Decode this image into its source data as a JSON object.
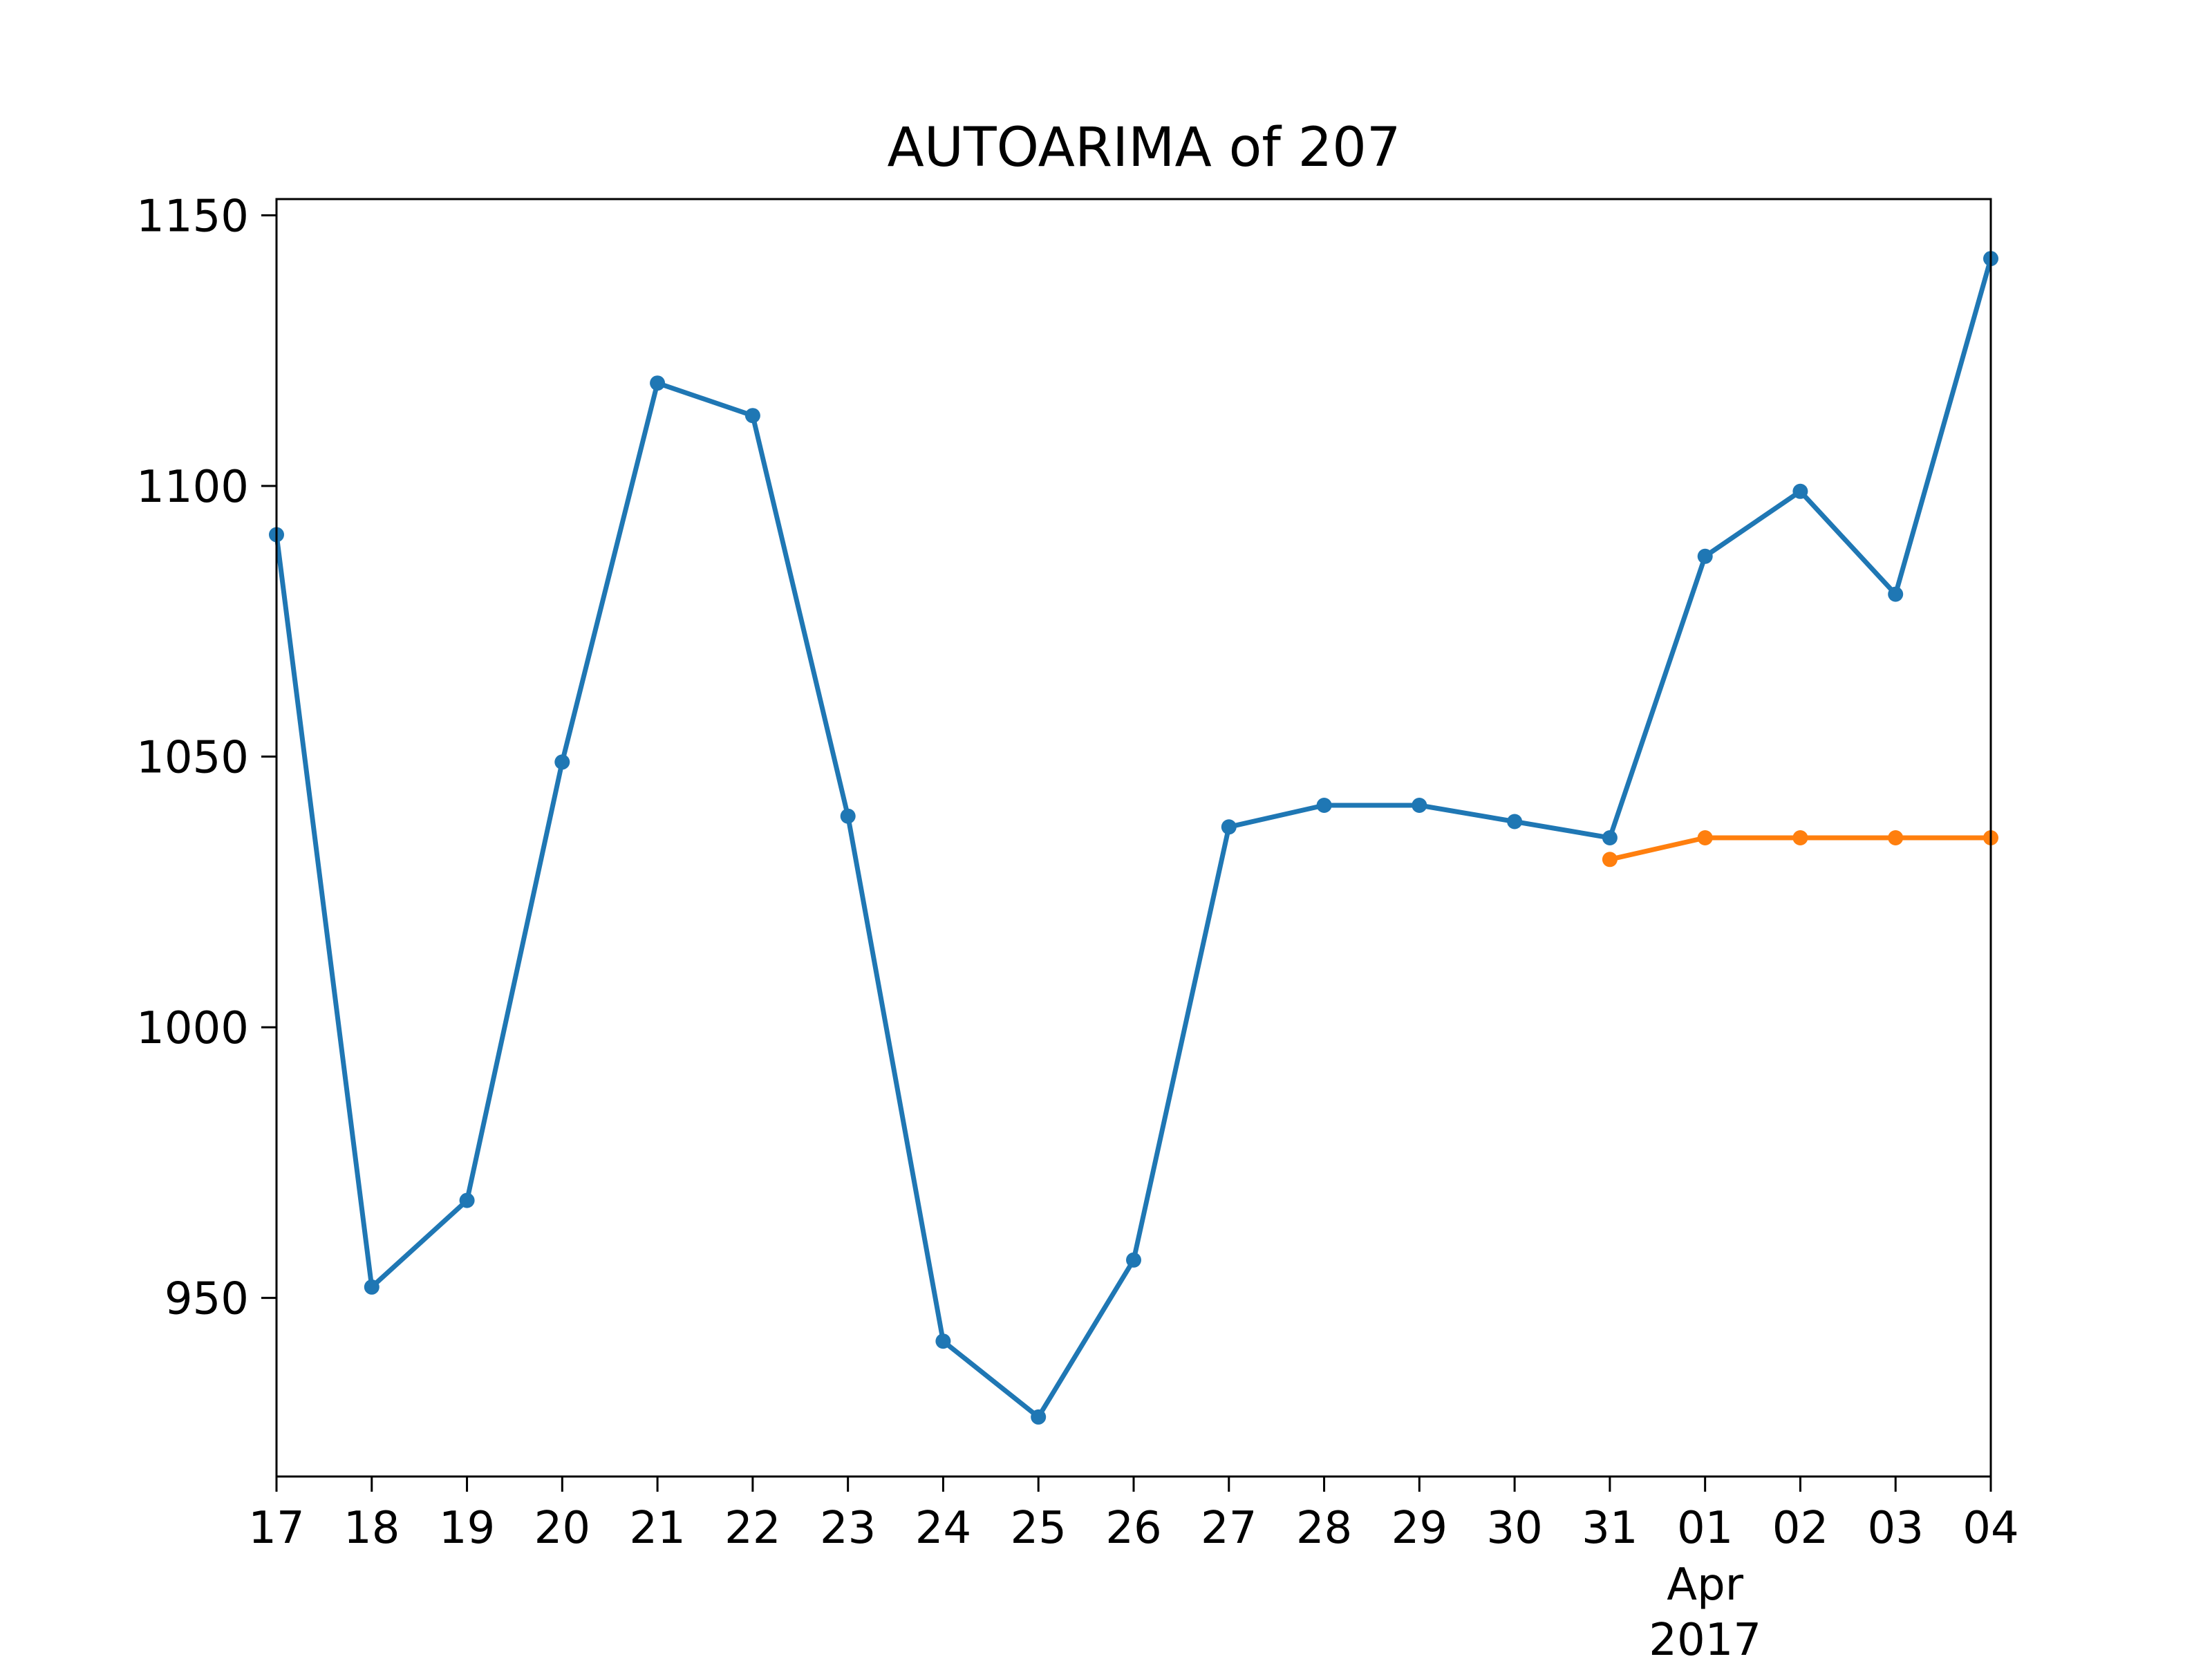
{
  "chart_data": {
    "type": "line",
    "title": "AUTOARIMA of 207",
    "xlabel": "",
    "ylabel": "",
    "x": [
      "2017-03-17",
      "2017-03-18",
      "2017-03-19",
      "2017-03-20",
      "2017-03-21",
      "2017-03-22",
      "2017-03-23",
      "2017-03-24",
      "2017-03-25",
      "2017-03-26",
      "2017-03-27",
      "2017-03-28",
      "2017-03-29",
      "2017-03-30",
      "2017-03-31",
      "2017-04-01",
      "2017-04-02",
      "2017-04-03",
      "2017-04-04"
    ],
    "x_tick_labels": [
      "17",
      "18",
      "19",
      "20",
      "21",
      "22",
      "23",
      "24",
      "25",
      "26",
      "27",
      "28",
      "29",
      "30",
      "31",
      "01",
      "02",
      "03",
      "04"
    ],
    "x_tick_sublabels": {
      "month": "Apr",
      "year": "2017"
    },
    "y_ticks": [
      950,
      1000,
      1050,
      1100,
      1150
    ],
    "ylim": [
      917,
      1153
    ],
    "grid": false,
    "series": [
      {
        "color": "#1f77b4",
        "points": [
          [
            "2017-03-17",
            1091
          ],
          [
            "2017-03-18",
            952
          ],
          [
            "2017-03-19",
            968
          ],
          [
            "2017-03-20",
            1049
          ],
          [
            "2017-03-21",
            1119
          ],
          [
            "2017-03-22",
            1113
          ],
          [
            "2017-03-23",
            1039
          ],
          [
            "2017-03-24",
            942
          ],
          [
            "2017-03-25",
            928
          ],
          [
            "2017-03-26",
            957
          ],
          [
            "2017-03-27",
            1037
          ],
          [
            "2017-03-28",
            1041
          ],
          [
            "2017-03-29",
            1041
          ],
          [
            "2017-03-30",
            1038
          ],
          [
            "2017-03-31",
            1035
          ],
          [
            "2017-04-01",
            1087
          ],
          [
            "2017-04-02",
            1099
          ],
          [
            "2017-04-03",
            1080
          ],
          [
            "2017-04-04",
            1142
          ]
        ]
      },
      {
        "color": "#ff7f0e",
        "points": [
          [
            "2017-03-31",
            1031
          ],
          [
            "2017-04-01",
            1035
          ],
          [
            "2017-04-02",
            1035
          ],
          [
            "2017-04-03",
            1035
          ],
          [
            "2017-04-04",
            1035
          ]
        ]
      }
    ]
  }
}
